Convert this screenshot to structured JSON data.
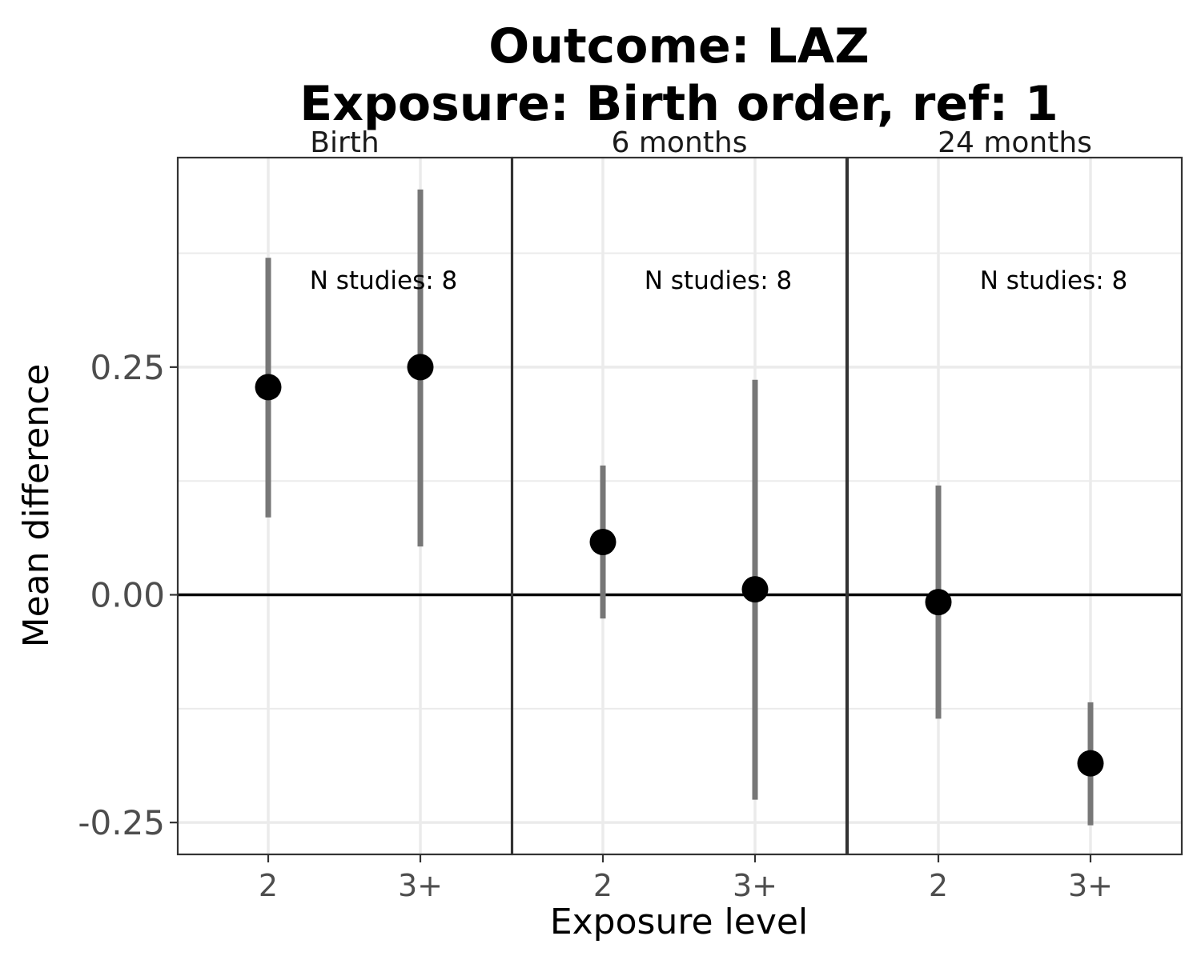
{
  "chart_data": {
    "type": "scatter",
    "title": [
      "Outcome: LAZ",
      "Exposure: Birth order, ref: 1"
    ],
    "xlabel": "Exposure level",
    "ylabel": "Mean difference",
    "ylim": [
      -0.285,
      0.48
    ],
    "yticks": [
      -0.25,
      0.0,
      0.25
    ],
    "ytick_labels": [
      "-0.25",
      "0.00",
      "0.25"
    ],
    "categories": [
      "2",
      "3+"
    ],
    "reference_line": 0,
    "grid": true,
    "panels": [
      {
        "label": "Birth",
        "annotation": "N studies: 8",
        "points": [
          {
            "x": "2",
            "y": 0.228,
            "lower": 0.085,
            "upper": 0.37
          },
          {
            "x": "3+",
            "y": 0.25,
            "lower": 0.053,
            "upper": 0.445
          }
        ]
      },
      {
        "label": "6 months",
        "annotation": "N studies: 8",
        "points": [
          {
            "x": "2",
            "y": 0.058,
            "lower": -0.026,
            "upper": 0.142
          },
          {
            "x": "3+",
            "y": 0.006,
            "lower": -0.225,
            "upper": 0.236
          }
        ]
      },
      {
        "label": "24 months",
        "annotation": "N studies: 8",
        "points": [
          {
            "x": "2",
            "y": -0.008,
            "lower": -0.136,
            "upper": 0.12
          },
          {
            "x": "3+",
            "y": -0.185,
            "lower": -0.253,
            "upper": -0.118
          }
        ]
      }
    ]
  }
}
